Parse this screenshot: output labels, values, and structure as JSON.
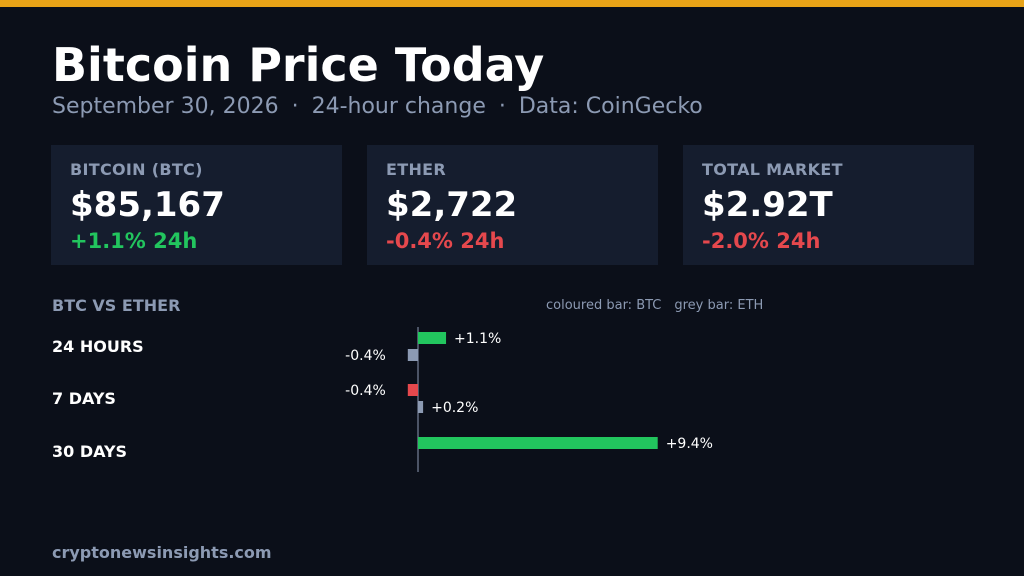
{
  "colors": {
    "background": "#0b0f19",
    "accent": "#e8a317",
    "card": "#151d2e",
    "positive": "#22c55e",
    "negative": "#e5484d",
    "eth_bar": "#8c9ab3",
    "muted_text": "#8c9ab3"
  },
  "header": {
    "title": "Bitcoin Price Today",
    "date": "September 30, 2026",
    "period": "24-hour change",
    "source": "Data: CoinGecko",
    "separator": "·"
  },
  "cards": [
    {
      "label": "BITCOIN (BTC)",
      "value": "$85,167",
      "change": "+1.1% 24h",
      "direction": "positive"
    },
    {
      "label": "ETHER",
      "value": "$2,722",
      "change": "-0.4% 24h",
      "direction": "negative"
    },
    {
      "label": "TOTAL MARKET",
      "value": "$2.92T",
      "change": "-2.0% 24h",
      "direction": "negative"
    }
  ],
  "comparison": {
    "heading": "BTC VS ETHER",
    "legend_btc": "coloured bar: BTC",
    "legend_eth": "grey bar: ETH"
  },
  "chart_data": {
    "type": "bar",
    "orientation": "horizontal",
    "categories": [
      "24 HOURS",
      "7 DAYS",
      "30 DAYS"
    ],
    "series": [
      {
        "name": "BTC",
        "values": [
          1.1,
          -0.4,
          9.4
        ],
        "labels": [
          "+1.1%",
          "-0.4%",
          "+9.4%"
        ]
      },
      {
        "name": "ETH",
        "values": [
          -0.4,
          0.2,
          null
        ],
        "labels": [
          "-0.4%",
          "+0.2%",
          null
        ]
      }
    ],
    "color_rule": "BTC bar green when positive, red when negative; ETH bar grey",
    "grid": false
  },
  "footer": {
    "site": "cryptonewsinsights.com"
  }
}
